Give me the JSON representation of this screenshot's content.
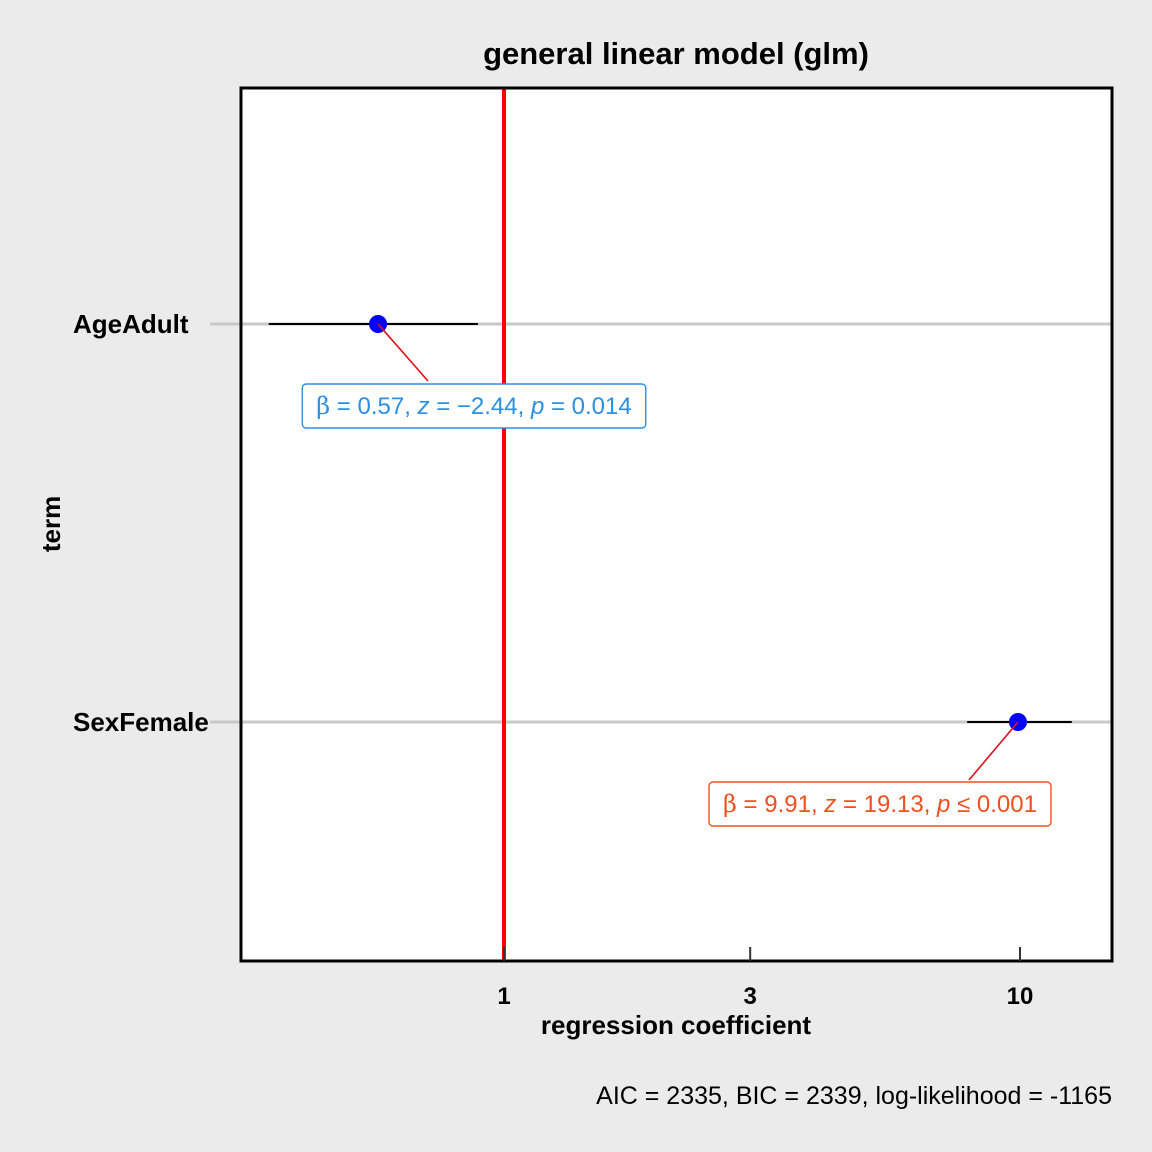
{
  "chart_data": {
    "type": "scatter",
    "title": "general linear model (glm)",
    "xlabel": "regression coefficient",
    "ylabel": "term",
    "x_scale": "log",
    "xlim": [
      0.3,
      15
    ],
    "x_ticks": [
      {
        "value": 1,
        "label": "1"
      },
      {
        "value": 3,
        "label": "3"
      },
      {
        "value": 10,
        "label": "10"
      }
    ],
    "reference_line": {
      "x": 1,
      "color": "#ff0000"
    },
    "terms": [
      "AgeAdult",
      "SexFemale"
    ],
    "points": [
      {
        "term": "AgeAdult",
        "estimate": 0.57,
        "conf_low": 0.35,
        "conf_high": 0.89,
        "color": "#0000ff",
        "label": {
          "beta": "0.57",
          "z": "−2.44",
          "p_op": "=",
          "p": "0.014",
          "color": "#2b8fe6"
        }
      },
      {
        "term": "SexFemale",
        "estimate": 9.91,
        "conf_low": 7.9,
        "conf_high": 12.6,
        "color": "#0000ff",
        "label": {
          "beta": "9.91",
          "z": "19.13",
          "p_op": "≤",
          "p": "0.001",
          "color": "#f0501e"
        }
      }
    ],
    "caption": "AIC = 2335, BIC = 2339, log-likelihood = -1165",
    "grid": "horizontal major only",
    "colors": {
      "background": "#ebebeb",
      "panel": "#ffffff",
      "gridline": "#c8c8c8",
      "errorbar": "#000000"
    }
  }
}
